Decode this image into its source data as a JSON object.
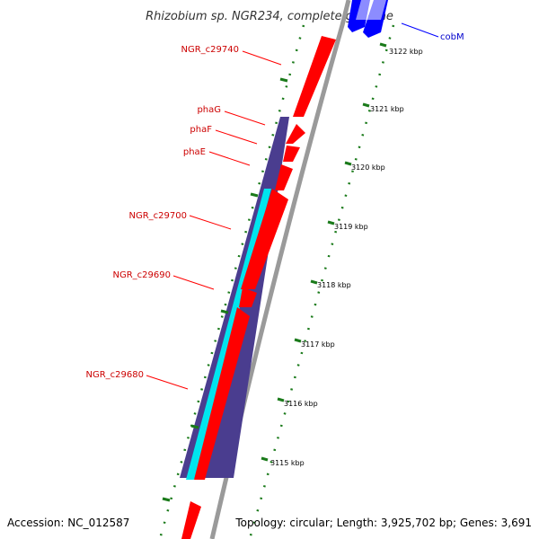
{
  "title": "Rhizobium sp. NGR234, complete genome",
  "footer": {
    "accession": "Accession: NC_012587",
    "topology": "Topology: circular; Length: 3,925,702 bp; Genes: 3,691"
  },
  "colors": {
    "forward_gene": "#ff0000",
    "reverse_gene": "#0000ff",
    "label_forward": "#cc0000",
    "label_reverse": "#0000cc",
    "track_purple": "#4a3d8f",
    "track_cyan": "#00e5ee",
    "backbone": "#9a9a9a",
    "tick": "#1a7a1a"
  },
  "gene_labels": [
    {
      "id": "cobM",
      "text": "cobM",
      "strand": "reverse"
    },
    {
      "id": "ngr-c29740",
      "text": "NGR_c29740",
      "strand": "forward"
    },
    {
      "id": "phaG",
      "text": "phaG",
      "strand": "forward"
    },
    {
      "id": "phaF",
      "text": "phaF",
      "strand": "forward"
    },
    {
      "id": "phaE",
      "text": "phaE",
      "strand": "forward"
    },
    {
      "id": "ngr-c29700",
      "text": "NGR_c29700",
      "strand": "forward"
    },
    {
      "id": "ngr-c29690",
      "text": "NGR_c29690",
      "strand": "forward"
    },
    {
      "id": "ngr-c29680",
      "text": "NGR_c29680",
      "strand": "forward"
    }
  ],
  "scale_ticks": [
    "3122 kbp",
    "3121 kbp",
    "3120 kbp",
    "3119 kbp",
    "3118 kbp",
    "3117 kbp",
    "3116 kbp",
    "3115 kbp"
  ]
}
